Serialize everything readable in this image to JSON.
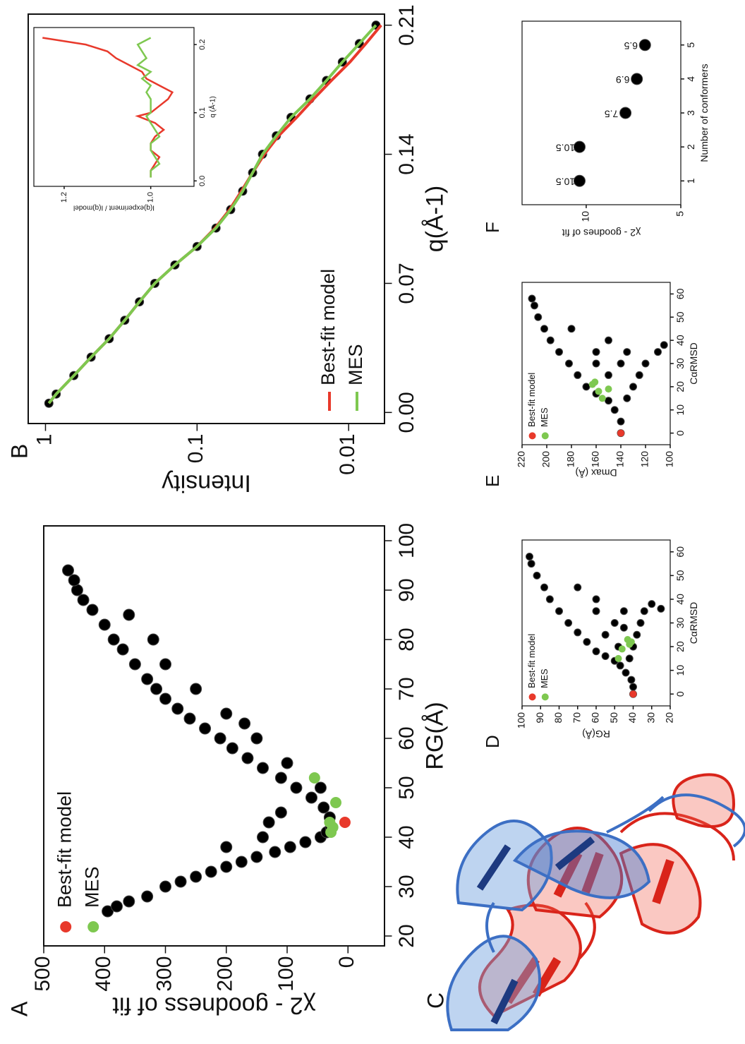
{
  "chart_data": [
    {
      "type": "scatter",
      "label": "A",
      "xlabel": "RG(Å)",
      "ylabel": "χ2 - goodness of fit",
      "xlim": [
        18,
        103
      ],
      "xticks": [
        20,
        30,
        40,
        50,
        60,
        70,
        80,
        90,
        100
      ],
      "ylim": [
        -60,
        500
      ],
      "yticks": [
        0,
        100,
        200,
        300,
        400,
        500
      ],
      "legend": "upper left",
      "series": [
        {
          "color": "#000000",
          "marker": "circle",
          "x": [
            25,
            26,
            27,
            28,
            30,
            31,
            32,
            33,
            34,
            35,
            36,
            37,
            38,
            39,
            40,
            41,
            42,
            44,
            46,
            48,
            50,
            52,
            54,
            56,
            58,
            60,
            62,
            64,
            66,
            68,
            70,
            72,
            75,
            78,
            80,
            83,
            86,
            88,
            90,
            92,
            94,
            38,
            40,
            43,
            45,
            55,
            60,
            65,
            70,
            75,
            80,
            85,
            63,
            50
          ],
          "values": [
            395,
            380,
            360,
            330,
            300,
            275,
            250,
            225,
            200,
            175,
            150,
            120,
            95,
            70,
            45,
            35,
            28,
            30,
            40,
            60,
            85,
            110,
            140,
            165,
            190,
            210,
            235,
            260,
            280,
            300,
            315,
            330,
            350,
            370,
            385,
            400,
            420,
            435,
            445,
            450,
            460,
            200,
            140,
            130,
            110,
            100,
            150,
            200,
            250,
            300,
            320,
            360,
            170,
            45
          ]
        },
        {
          "name": "Best-fit model",
          "color": "#e8392b",
          "marker": "circle",
          "x": [
            43
          ],
          "values": [
            5
          ]
        },
        {
          "name": "MES",
          "color": "#7ec850",
          "marker": "circle",
          "x": [
            41,
            42,
            47,
            52,
            43
          ],
          "values": [
            28,
            25,
            20,
            55,
            30
          ]
        }
      ]
    },
    {
      "type": "line",
      "label": "B",
      "xlabel": "q(Å-1)",
      "ylabel": "Intensity",
      "yscale": "log",
      "xlim": [
        -0.006,
        0.216
      ],
      "xticks": [
        {
          "value": 0,
          "label": "0.00"
        },
        0.07,
        0.14,
        0.21
      ],
      "ylim": [
        0.0058,
        1.3
      ],
      "yticks": [
        1,
        0.1,
        0.01
      ],
      "legend": "lower left",
      "series": [
        {
          "color": "#000000",
          "marker": "circle",
          "x": [
            0.005,
            0.01,
            0.02,
            0.03,
            0.04,
            0.05,
            0.06,
            0.07,
            0.08,
            0.09,
            0.1,
            0.11,
            0.12,
            0.13,
            0.14,
            0.15,
            0.16,
            0.17,
            0.18,
            0.19,
            0.2,
            0.21
          ],
          "values": [
            0.95,
            0.85,
            0.65,
            0.5,
            0.38,
            0.3,
            0.24,
            0.19,
            0.14,
            0.1,
            0.075,
            0.06,
            0.05,
            0.043,
            0.037,
            0.03,
            0.024,
            0.018,
            0.014,
            0.011,
            0.0085,
            0.0066
          ]
        },
        {
          "name": "Best-fit model",
          "color": "#e8392b",
          "x": [
            0.005,
            0.01,
            0.02,
            0.03,
            0.04,
            0.05,
            0.06,
            0.07,
            0.08,
            0.09,
            0.1,
            0.11,
            0.12,
            0.13,
            0.14,
            0.15,
            0.16,
            0.17,
            0.18,
            0.19,
            0.2,
            0.21
          ],
          "values": [
            0.95,
            0.85,
            0.65,
            0.5,
            0.38,
            0.3,
            0.24,
            0.19,
            0.14,
            0.1,
            0.076,
            0.061,
            0.051,
            0.043,
            0.036,
            0.029,
            0.022,
            0.017,
            0.013,
            0.0098,
            0.0077,
            0.0061
          ]
        },
        {
          "name": "MES",
          "color": "#7ec850",
          "x": [
            0.005,
            0.01,
            0.02,
            0.03,
            0.04,
            0.05,
            0.06,
            0.07,
            0.08,
            0.09,
            0.1,
            0.11,
            0.12,
            0.13,
            0.14,
            0.15,
            0.16,
            0.17,
            0.18,
            0.19,
            0.2,
            0.21
          ],
          "values": [
            0.95,
            0.85,
            0.65,
            0.5,
            0.38,
            0.3,
            0.24,
            0.19,
            0.14,
            0.1,
            0.075,
            0.06,
            0.05,
            0.043,
            0.037,
            0.03,
            0.024,
            0.018,
            0.014,
            0.011,
            0.0085,
            0.0066
          ]
        }
      ]
    },
    {
      "type": "line",
      "xlabel": "q (Å-1)",
      "ylabel": "I(q)experiment / I(q)model",
      "xlim": [
        -0.008,
        0.225
      ],
      "xticks": [
        {
          "value": 0,
          "label": "0.0"
        },
        0.1,
        0.2
      ],
      "ylim": [
        0.9,
        1.27
      ],
      "yticks": [
        {
          "value": 1,
          "label": "1.0"
        },
        1.2
      ],
      "series": [
        {
          "color": "#e8392b",
          "x": [
            0.005,
            0.015,
            0.025,
            0.035,
            0.045,
            0.055,
            0.065,
            0.075,
            0.085,
            0.095,
            0.1,
            0.11,
            0.12,
            0.13,
            0.14,
            0.15,
            0.16,
            0.17,
            0.18,
            0.19,
            0.2,
            0.21
          ],
          "values": [
            1.0,
            1.0,
            0.99,
            0.98,
            1.0,
            1.0,
            0.99,
            0.97,
            0.99,
            1.03,
            1.0,
            0.98,
            0.96,
            0.95,
            0.98,
            1.01,
            1.02,
            1.05,
            1.08,
            1.1,
            1.15,
            1.25
          ]
        },
        {
          "color": "#7ec850",
          "x": [
            0.005,
            0.015,
            0.025,
            0.035,
            0.045,
            0.055,
            0.065,
            0.075,
            0.085,
            0.095,
            0.1,
            0.11,
            0.12,
            0.13,
            0.14,
            0.15,
            0.16,
            0.17,
            0.18,
            0.19,
            0.2,
            0.21
          ],
          "values": [
            1.0,
            1.0,
            0.98,
            0.99,
            1.0,
            1.0,
            0.98,
            0.99,
            1.0,
            1.01,
            1.0,
            1.0,
            1.0,
            1.01,
            1.0,
            1.02,
            1.0,
            1.03,
            1.01,
            1.02,
            1.03,
            1.0
          ]
        }
      ]
    },
    {
      "type": "scatter",
      "label": "D",
      "xlabel": "CαRMSD",
      "ylabel": "RG(Å)",
      "xlim": [
        -5,
        65
      ],
      "xticks": [
        0,
        10,
        20,
        30,
        40,
        50,
        60
      ],
      "ylim": [
        20,
        100
      ],
      "yticks": [
        20,
        30,
        40,
        50,
        60,
        70,
        80,
        90,
        100
      ],
      "legend": "upper left",
      "series": [
        {
          "color": "#000000",
          "marker": "circle",
          "x": [
            0,
            3,
            6,
            9,
            12,
            14,
            16,
            18,
            22,
            26,
            30,
            35,
            40,
            45,
            50,
            55,
            58,
            15,
            20,
            25,
            30,
            35,
            38,
            36,
            20,
            25,
            30,
            35,
            40,
            45,
            35,
            28
          ],
          "values": [
            40,
            40,
            41,
            44,
            47,
            50,
            55,
            60,
            65,
            70,
            75,
            80,
            85,
            88,
            92,
            95,
            96,
            42,
            40,
            38,
            36,
            34,
            30,
            25,
            48,
            55,
            50,
            45,
            60,
            70,
            60,
            45
          ]
        },
        {
          "name": "Best-fit model",
          "color": "#e8392b",
          "marker": "circle",
          "x": [
            0
          ],
          "values": [
            40
          ]
        },
        {
          "name": "MES",
          "color": "#7ec850",
          "marker": "circle",
          "x": [
            15,
            19,
            21,
            22,
            23
          ],
          "values": [
            48,
            46,
            42,
            41,
            43
          ]
        }
      ]
    },
    {
      "type": "scatter",
      "label": "E",
      "xlabel": "CαRMSD",
      "ylabel": "Dmax (Å)",
      "xlim": [
        -5,
        65
      ],
      "xticks": [
        0,
        10,
        20,
        30,
        40,
        50,
        60
      ],
      "ylim": [
        100,
        220
      ],
      "yticks": [
        100,
        120,
        140,
        160,
        180,
        200,
        220
      ],
      "legend": "upper left",
      "series": [
        {
          "color": "#000000",
          "marker": "circle",
          "x": [
            0,
            5,
            10,
            14,
            17,
            20,
            25,
            30,
            35,
            40,
            45,
            50,
            55,
            58,
            15,
            20,
            25,
            30,
            35,
            38,
            25,
            30,
            35,
            40,
            35,
            45,
            30
          ],
          "values": [
            140,
            140,
            145,
            150,
            160,
            168,
            175,
            182,
            190,
            197,
            202,
            207,
            210,
            212,
            135,
            130,
            125,
            120,
            110,
            105,
            150,
            140,
            135,
            150,
            160,
            180,
            160
          ]
        },
        {
          "name": "Best-fit model",
          "color": "#e8392b",
          "marker": "circle",
          "x": [
            0
          ],
          "values": [
            140
          ]
        },
        {
          "name": "MES",
          "color": "#7ec850",
          "marker": "circle",
          "x": [
            15,
            18,
            21,
            22,
            19
          ],
          "values": [
            155,
            158,
            163,
            161,
            150
          ]
        }
      ]
    },
    {
      "type": "scatter",
      "label": "F",
      "xlabel": "Number of conformers",
      "ylabel": "χ2 - goodnes of fit",
      "yscale": "log",
      "xlim": [
        0.3,
        5.7
      ],
      "xticks": [
        1,
        2,
        3,
        4,
        5
      ],
      "ylim": [
        5,
        16
      ],
      "yticks": [
        5,
        10
      ],
      "series": [
        {
          "color": "#000000",
          "marker": "circle",
          "data_labels": true,
          "x": [
            1,
            2,
            3,
            4,
            5
          ],
          "values": [
            10.5,
            10.5,
            7.5,
            6.9,
            6.5
          ]
        }
      ]
    }
  ],
  "figure_c": {
    "label": "C"
  }
}
